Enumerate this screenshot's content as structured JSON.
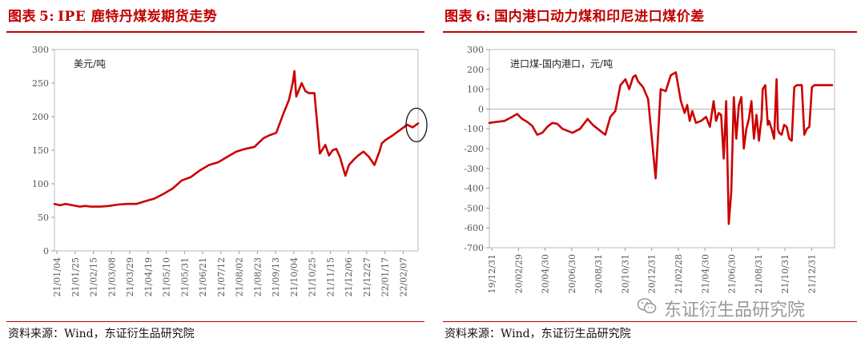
{
  "left": {
    "title_prefix": "图表",
    "title_num": "5:",
    "title_text": "IPE 鹿特丹煤炭期货走势",
    "source": "资料来源：Wind，东证衍生品研究院"
  },
  "right": {
    "title_prefix": "图表",
    "title_num": "6:",
    "title_text": "国内港口动力煤和印尼进口煤价差",
    "source": "资料来源：Wind，东证衍生品研究院"
  },
  "watermark": {
    "text": "东证衍生品研究院",
    "icon": "wechat-icon"
  },
  "chart_data": [
    {
      "type": "line",
      "title": "IPE 鹿特丹煤炭期货走势",
      "unit_label": "美元/吨",
      "ylim": [
        0,
        300
      ],
      "yticks": [
        0,
        50,
        100,
        150,
        200,
        250,
        300
      ],
      "xticks": [
        "21/01/04",
        "21/01/25",
        "21/02/15",
        "21/03/08",
        "21/03/29",
        "21/04/19",
        "21/05/10",
        "21/05/31",
        "21/06/21",
        "21/07/12",
        "21/08/02",
        "21/08/23",
        "21/09/13",
        "21/10/04",
        "21/10/25",
        "21/11/15",
        "21/12/06",
        "21/12/27",
        "22/01/17",
        "22/02/07"
      ],
      "x_range": [
        0,
        20
      ],
      "grid": false,
      "color": "#cc0000",
      "annotation": "circle around latest value",
      "x": [
        0,
        0.3,
        0.6,
        1.0,
        1.4,
        1.7,
        2.0,
        2.5,
        3.0,
        3.5,
        4.0,
        4.5,
        5.0,
        5.5,
        6.0,
        6.5,
        7.0,
        7.5,
        8.0,
        8.5,
        9.0,
        9.5,
        10.0,
        10.5,
        11.0,
        11.5,
        11.8,
        12.2,
        12.6,
        12.9,
        13.1,
        13.2,
        13.3,
        13.45,
        13.6,
        13.8,
        14.0,
        14.3,
        14.6,
        14.9,
        15.1,
        15.3,
        15.5,
        15.7,
        16.0,
        16.2,
        16.5,
        16.7,
        17.0,
        17.3,
        17.6,
        17.9,
        18.0,
        18.2,
        18.6,
        19.0,
        19.4,
        19.7,
        20.0
      ],
      "y": [
        70,
        68,
        70,
        68,
        66,
        67,
        66,
        66,
        67,
        69,
        70,
        70,
        74,
        78,
        85,
        93,
        105,
        110,
        120,
        128,
        132,
        140,
        148,
        152,
        155,
        168,
        172,
        176,
        205,
        225,
        250,
        268,
        230,
        240,
        250,
        238,
        235,
        235,
        145,
        158,
        142,
        150,
        152,
        140,
        112,
        128,
        137,
        142,
        148,
        140,
        128,
        150,
        160,
        165,
        172,
        180,
        188,
        184,
        190
      ]
    },
    {
      "type": "line",
      "title": "国内港口动力煤和印尼进口煤价差",
      "unit_label": "进口煤-国内港口，元/吨",
      "ylim": [
        -700,
        300
      ],
      "yticks": [
        -700,
        -600,
        -500,
        -400,
        -300,
        -200,
        -100,
        0,
        100,
        200,
        300
      ],
      "xticks": [
        "19/12/31",
        "20/02/29",
        "20/04/30",
        "20/06/30",
        "20/08/31",
        "20/10/31",
        "20/12/31",
        "21/02/28",
        "21/04/30",
        "21/06/30",
        "21/08/31",
        "21/10/31",
        "21/12/31"
      ],
      "x_range": [
        0,
        13.7
      ],
      "grid": false,
      "color": "#cc0000",
      "x": [
        0,
        0.3,
        0.6,
        0.9,
        1.1,
        1.3,
        1.5,
        1.7,
        1.9,
        2.1,
        2.3,
        2.5,
        2.7,
        2.9,
        3.1,
        3.3,
        3.6,
        3.9,
        4.1,
        4.4,
        4.6,
        4.8,
        5.0,
        5.2,
        5.4,
        5.55,
        5.7,
        5.8,
        5.9,
        6.1,
        6.3,
        6.45,
        6.6,
        6.8,
        7.0,
        7.2,
        7.4,
        7.6,
        7.75,
        7.85,
        7.95,
        8.05,
        8.2,
        8.4,
        8.6,
        8.75,
        8.9,
        9.0,
        9.1,
        9.2,
        9.3,
        9.4,
        9.5,
        9.6,
        9.7,
        9.8,
        9.9,
        10.0,
        10.1,
        10.2,
        10.3,
        10.4,
        10.5,
        10.6,
        10.7,
        10.75,
        10.8,
        10.85,
        10.95,
        11.05,
        11.1,
        11.2,
        11.3,
        11.4,
        11.45,
        11.5,
        11.6,
        11.7,
        11.8,
        11.9,
        12.0,
        12.1,
        12.2,
        12.3,
        12.4,
        12.5,
        12.6,
        12.7,
        12.8,
        12.9,
        13.0,
        13.1,
        13.2,
        13.3,
        13.4,
        13.5,
        13.6
      ],
      "y": [
        -70,
        -65,
        -60,
        -40,
        -25,
        -50,
        -65,
        -85,
        -130,
        -120,
        -90,
        -70,
        -75,
        -100,
        -110,
        -120,
        -100,
        -50,
        -80,
        -110,
        -130,
        -40,
        -10,
        120,
        150,
        100,
        160,
        170,
        140,
        110,
        50,
        -150,
        -350,
        100,
        90,
        170,
        185,
        40,
        -20,
        20,
        -60,
        -10,
        -70,
        -60,
        -40,
        -90,
        40,
        -60,
        -20,
        -30,
        -250,
        40,
        -580,
        -420,
        60,
        -150,
        20,
        60,
        -200,
        -100,
        -50,
        40,
        -150,
        -30,
        -160,
        -100,
        -50,
        100,
        120,
        -80,
        -60,
        -100,
        -150,
        150,
        -100,
        -120,
        -130,
        -80,
        -90,
        -150,
        -160,
        110,
        120,
        120,
        120,
        -130,
        -100,
        -90,
        110,
        120,
        120,
        120,
        120,
        120,
        120,
        120,
        120
      ]
    }
  ]
}
